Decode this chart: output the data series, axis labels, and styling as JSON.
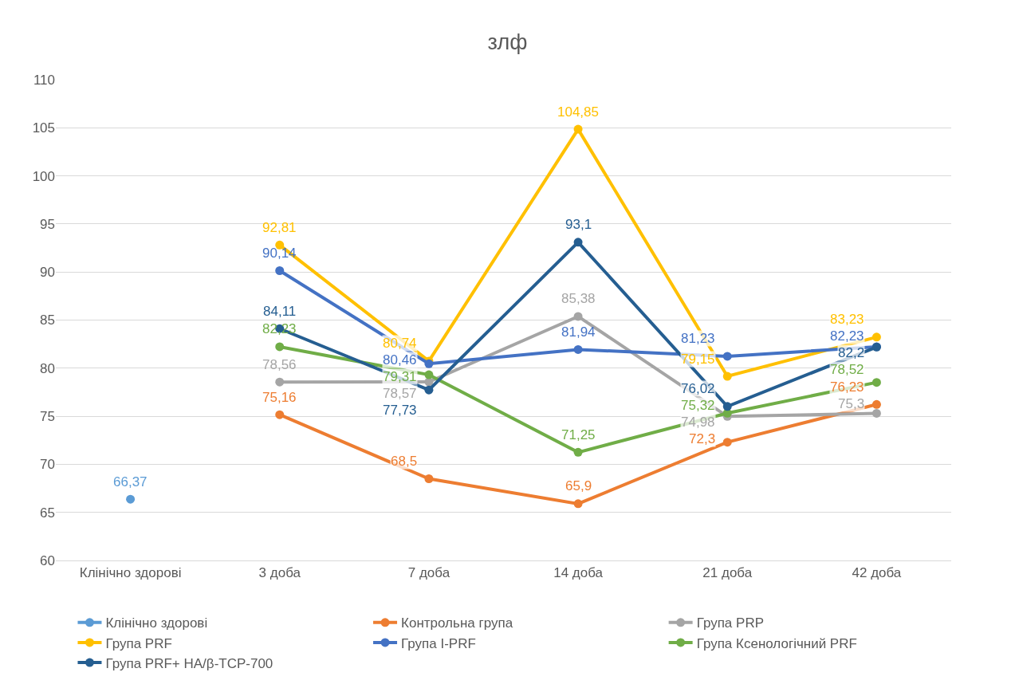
{
  "chart_data": {
    "type": "line",
    "title": "злф",
    "categories": [
      "Клінічно здорові",
      "3 доба",
      "7 доба",
      "14 доба",
      "21 доба",
      "42 доба"
    ],
    "series": [
      {
        "name": "Клінічно здорові",
        "color": "#5b9bd5",
        "values": [
          66.37,
          null,
          null,
          null,
          null,
          null
        ],
        "value_labels": [
          "66,37",
          null,
          null,
          null,
          null,
          null
        ]
      },
      {
        "name": "Контрольна група",
        "color": "#ed7d31",
        "values": [
          null,
          75.16,
          68.5,
          65.9,
          72.3,
          76.23
        ],
        "value_labels": [
          null,
          "75,16",
          "68,5",
          "65,9",
          "72,3",
          "76,23"
        ]
      },
      {
        "name": "Група PRP",
        "color": "#a5a5a5",
        "values": [
          null,
          78.56,
          78.57,
          85.38,
          74.98,
          75.3
        ],
        "value_labels": [
          null,
          "78,56",
          "78,57",
          "85,38",
          "74,98",
          "75,3"
        ]
      },
      {
        "name": "Група PRF",
        "color": "#ffc000",
        "values": [
          null,
          92.81,
          80.74,
          104.85,
          79.15,
          83.23
        ],
        "value_labels": [
          null,
          "92,81",
          "80,74",
          "104,85",
          "79,15",
          "83,23"
        ]
      },
      {
        "name": "Група I-PRF",
        "color": "#4472c4",
        "values": [
          null,
          90.14,
          80.46,
          81.94,
          81.23,
          82.23
        ],
        "value_labels": [
          null,
          "90,14",
          "80,46",
          "81,94",
          "81,23",
          "82,23"
        ]
      },
      {
        "name": "Група Ксенологічний PRF",
        "color": "#70ad47",
        "values": [
          null,
          82.23,
          79.31,
          71.25,
          75.32,
          78.52
        ],
        "value_labels": [
          null,
          "82,23",
          "79,31",
          "71,25",
          "75,32",
          "78,52"
        ]
      },
      {
        "name": "Група PRF+ HA/β-TCP-700",
        "color": "#255e91",
        "values": [
          null,
          84.11,
          77.73,
          93.1,
          76.02,
          82.2
        ],
        "value_labels": [
          null,
          "84,11",
          "77,73",
          "93,1",
          "76,02",
          "82,2"
        ]
      }
    ],
    "ylim": [
      60,
      110
    ],
    "yticks": [
      60,
      65,
      70,
      75,
      80,
      85,
      90,
      95,
      100,
      105,
      110
    ],
    "grid": "y",
    "legend": "bottom",
    "marker": "circle",
    "line_style": "solid"
  }
}
